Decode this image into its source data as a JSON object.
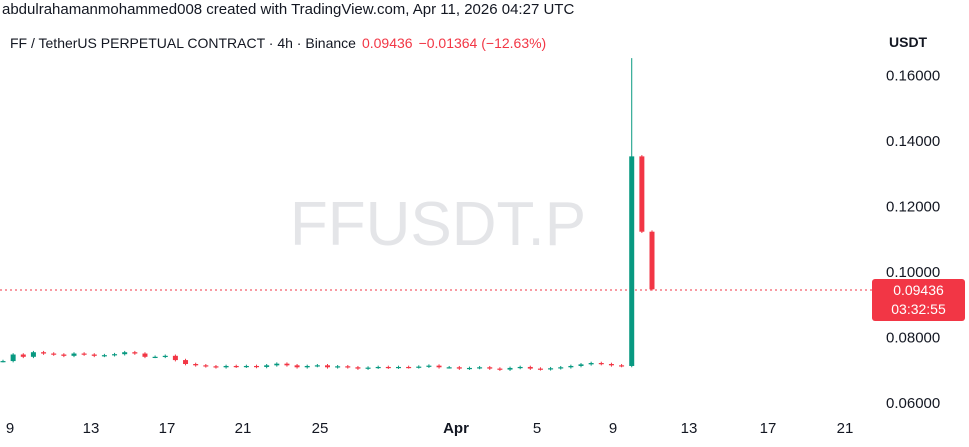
{
  "credit": "abdulrahamanmohammed008 created with TradingView.com, Apr 11, 2026 04:27 UTC",
  "legend": {
    "symbol": "FF / TetherUS PERPETUAL CONTRACT · 4h · Binance",
    "last": "0.09436",
    "change": "−0.01364 (−12.63%)"
  },
  "watermark": "FFUSDT.P",
  "axis_unit": "USDT",
  "price_badge": {
    "price": "0.09436",
    "countdown": "03:32:55"
  },
  "colors": {
    "up": "#089981",
    "down": "#f23645",
    "grid": "#f0f3fa",
    "text": "#131722"
  },
  "chart_data": {
    "type": "line",
    "series": [
      {
        "values": [
          0.0725,
          0.0745,
          0.0738,
          0.0752,
          0.0748,
          0.0745,
          0.0741,
          0.0748,
          0.0745,
          0.0741,
          0.0743,
          0.0746,
          0.0752,
          0.0748,
          0.0738,
          0.0738,
          0.0741,
          0.0728,
          0.0716,
          0.0712,
          0.0709,
          0.0706,
          0.071,
          0.0708,
          0.071,
          0.0707,
          0.0712,
          0.0717,
          0.0712,
          0.0706,
          0.071,
          0.0712,
          0.0706,
          0.0709,
          0.0706,
          0.0702,
          0.0705,
          0.0707,
          0.0705,
          0.0707,
          0.0706,
          0.0708,
          0.0711,
          0.0706,
          0.0706,
          0.0702,
          0.0704,
          0.0706,
          0.0702,
          0.0699,
          0.0704,
          0.0707,
          0.0702,
          0.07,
          0.0703,
          0.0706,
          0.071,
          0.0715,
          0.0719,
          0.0716,
          0.0712,
          0.071,
          0.135,
          0.112,
          0.0944
        ]
      }
    ],
    "x_tick_labels": [
      "9",
      "13",
      "17",
      "21",
      "25",
      "Apr",
      "5",
      "9",
      "13",
      "17",
      "21"
    ],
    "y_tick_labels": [
      "0.16000",
      "0.14000",
      "0.12000",
      "0.10000",
      "0.08000",
      "0.06000"
    ],
    "ylim": [
      0.06,
      0.164
    ],
    "last_price": 0.09436,
    "price_line_color": "#f23645",
    "grid": false
  }
}
